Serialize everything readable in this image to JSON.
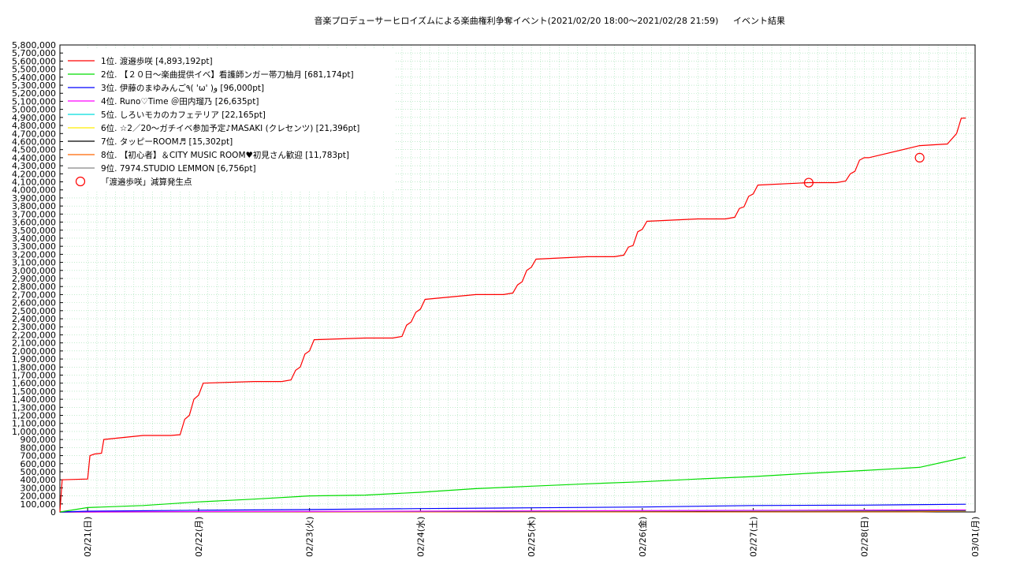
{
  "chart_data": {
    "type": "line",
    "title": "音楽プロデューサーヒロイズムによる楽曲権利争奪イベント(2021/02/20 18:00～2021/02/28 21:59)",
    "subtitle": "イベント結果",
    "xlabel": "",
    "ylabel": "",
    "ylim": [
      0,
      5800000
    ],
    "ytick_step": 100000,
    "x_tick_labels": [
      "02/21(日)",
      "02/22(月)",
      "02/23(火)",
      "02/24(水)",
      "02/25(木)",
      "02/26(金)",
      "02/27(土)",
      "02/28(日)",
      "03/01(月)"
    ],
    "grid": true,
    "legend_position": "top-left",
    "series": [
      {
        "name": "1位. 渡邉歩咲 [4,893,192pt]",
        "color": "#ff0000",
        "x": [
          "02/20 18:00",
          "02/20 18:30",
          "02/21 00:00",
          "02/21 00:30",
          "02/21 01:30",
          "02/21 03:00",
          "02/21 03:30",
          "02/21 12:00",
          "02/21 18:00",
          "02/21 20:00",
          "02/21 21:00",
          "02/21 22:00",
          "02/21 23:00",
          "02/22 00:00",
          "02/22 01:00",
          "02/22 12:00",
          "02/22 18:00",
          "02/22 20:00",
          "02/22 21:00",
          "02/22 22:00",
          "02/22 23:00",
          "02/23 00:00",
          "02/23 01:00",
          "02/23 12:00",
          "02/23 18:00",
          "02/23 20:00",
          "02/23 21:00",
          "02/23 22:00",
          "02/23 23:00",
          "02/24 00:00",
          "02/24 01:00",
          "02/24 12:00",
          "02/24 18:00",
          "02/24 20:00",
          "02/24 21:00",
          "02/24 22:00",
          "02/24 23:00",
          "02/25 00:00",
          "02/25 01:00",
          "02/25 12:00",
          "02/25 18:00",
          "02/25 20:00",
          "02/25 21:00",
          "02/25 22:00",
          "02/25 23:00",
          "02/26 00:00",
          "02/26 01:00",
          "02/26 12:00",
          "02/26 18:00",
          "02/26 20:00",
          "02/26 21:00",
          "02/26 22:00",
          "02/26 23:00",
          "02/27 00:00",
          "02/27 01:00",
          "02/27 12:00",
          "02/27 18:00",
          "02/27 20:00",
          "02/27 21:00",
          "02/27 22:00",
          "02/27 23:00",
          "02/28 00:00",
          "02/28 01:00",
          "02/28 12:00",
          "02/28 18:00",
          "02/28 20:00",
          "02/28 21:00",
          "02/28 21:59"
        ],
        "values": [
          0,
          400000,
          410000,
          700000,
          720000,
          730000,
          900000,
          950000,
          950000,
          960000,
          1150000,
          1200000,
          1400000,
          1450000,
          1600000,
          1620000,
          1620000,
          1640000,
          1760000,
          1800000,
          1960000,
          2000000,
          2140000,
          2160000,
          2160000,
          2180000,
          2320000,
          2360000,
          2480000,
          2520000,
          2640000,
          2700000,
          2700000,
          2720000,
          2820000,
          2860000,
          3000000,
          3040000,
          3140000,
          3170000,
          3170000,
          3190000,
          3290000,
          3310000,
          3480000,
          3510000,
          3610000,
          3640000,
          3640000,
          3660000,
          3770000,
          3790000,
          3920000,
          3950000,
          4060000,
          4090000,
          4090000,
          4110000,
          4200000,
          4230000,
          4370000,
          4400000,
          4400000,
          4550000,
          4570000,
          4700000,
          4890000,
          4893192
        ]
      },
      {
        "name": "2位. 【２０日〜楽曲提供イベ】看護師ンガー帯刀柚月 [681,174pt]",
        "color": "#00dd00",
        "x": [
          "02/20 18:00",
          "02/21 00:00",
          "02/21 12:00",
          "02/22 00:00",
          "02/22 12:00",
          "02/23 00:00",
          "02/23 12:00",
          "02/24 00:00",
          "02/24 12:00",
          "02/25 00:00",
          "02/25 12:00",
          "02/26 00:00",
          "02/26 12:00",
          "02/27 00:00",
          "02/27 12:00",
          "02/28 00:00",
          "02/28 12:00",
          "02/28 21:59"
        ],
        "values": [
          0,
          55000,
          80000,
          125000,
          160000,
          200000,
          210000,
          245000,
          290000,
          320000,
          350000,
          375000,
          410000,
          440000,
          480000,
          515000,
          555000,
          681174
        ]
      },
      {
        "name": "3位. 伊藤のまゆみんご٩( 'ω' )و [96,000pt]",
        "color": "#0000ff",
        "x": [
          "02/20 18:00",
          "02/21 00:00",
          "02/22 00:00",
          "02/23 00:00",
          "02/24 00:00",
          "02/25 00:00",
          "02/26 00:00",
          "02/27 00:00",
          "02/28 00:00",
          "02/28 21:59"
        ],
        "values": [
          0,
          10000,
          22000,
          30000,
          42000,
          52000,
          62000,
          80000,
          85000,
          96000
        ]
      },
      {
        "name": "4位. Runo♡Time ＠田内瑠乃 [26,635pt]",
        "color": "#ff00ff",
        "x": [
          "02/20 18:00",
          "02/28 21:59"
        ],
        "values": [
          0,
          26635
        ]
      },
      {
        "name": "5位. しろいモカのカフェテリア [22,165pt]",
        "color": "#00dddd",
        "x": [
          "02/20 18:00",
          "02/28 21:59"
        ],
        "values": [
          0,
          22165
        ]
      },
      {
        "name": "6位. ☆2／20〜ガチイベ参加予定♪MASAKI (クレセンツ) [21,396pt]",
        "color": "#ffee00",
        "x": [
          "02/20 18:00",
          "02/28 21:59"
        ],
        "values": [
          0,
          21396
        ]
      },
      {
        "name": "7位. タッピーROOM♬ [15,302pt]",
        "color": "#000000",
        "x": [
          "02/20 18:00",
          "02/28 21:59"
        ],
        "values": [
          0,
          15302
        ]
      },
      {
        "name": "8位. 【初心者】＆CITY MUSIC ROOM♥初見さん歓迎 [11,783pt]",
        "color": "#ff6600",
        "x": [
          "02/20 18:00",
          "02/28 12:00",
          "02/28 21:59"
        ],
        "values": [
          0,
          2000,
          11783
        ]
      },
      {
        "name": "9位. 7974.STUDIO LEMMON [6,756pt]",
        "color": "#888888",
        "x": [
          "02/20 18:00",
          "02/28 21:59"
        ],
        "values": [
          0,
          6756
        ]
      }
    ],
    "markers": {
      "name": "「渡邉歩咲」減算発生点",
      "color": "#ff0000",
      "points": [
        {
          "x": "02/27 12:00",
          "y": 4090000
        },
        {
          "x": "02/28 12:00",
          "y": 4400000
        }
      ]
    }
  }
}
